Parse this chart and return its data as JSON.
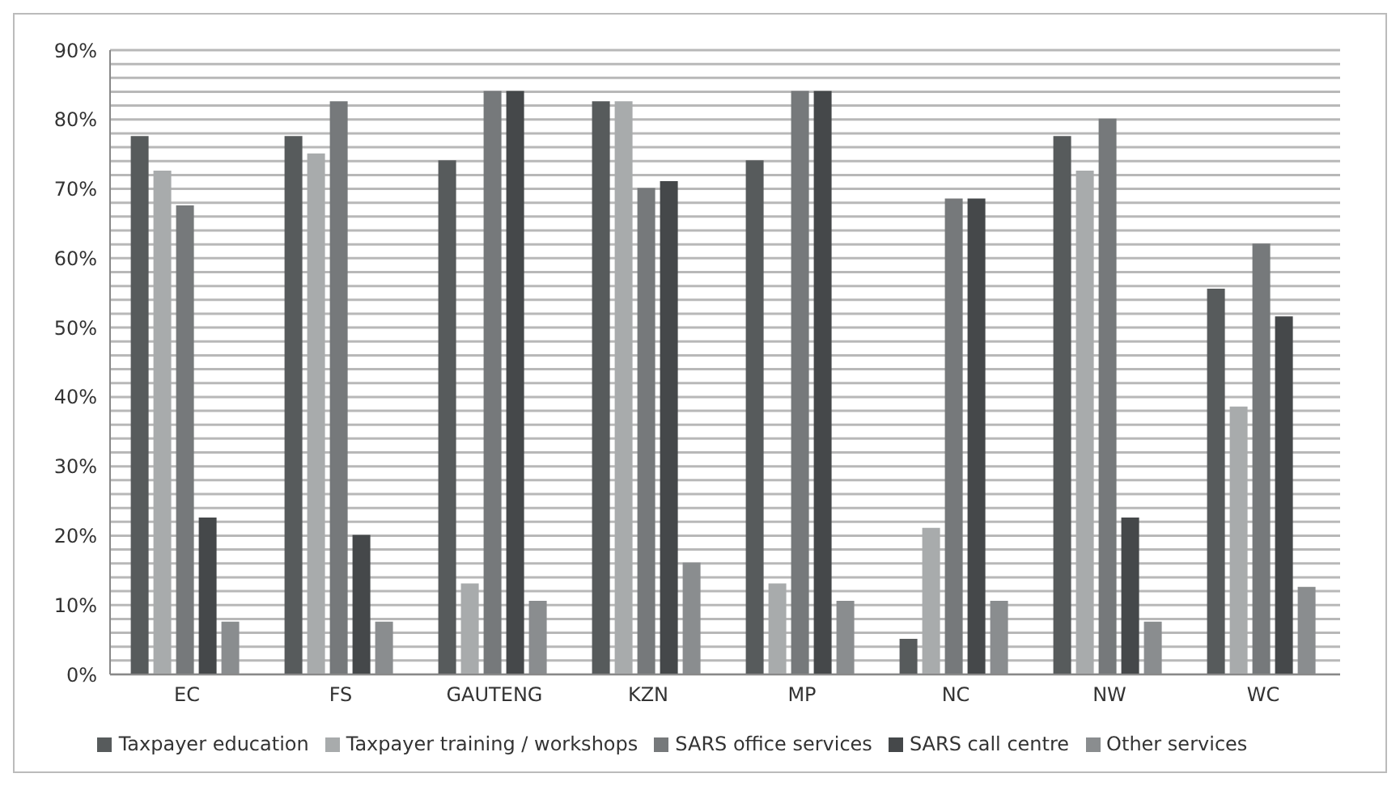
{
  "chart_data": {
    "type": "bar",
    "categories": [
      "EC",
      "FS",
      "GAUTENG",
      "KZN",
      "MP",
      "NC",
      "NW",
      "WC"
    ],
    "series": [
      {
        "name": "Taxpayer education",
        "color": "#575b5c",
        "values": [
          77.5,
          77.5,
          74,
          82.5,
          74,
          5,
          77.5,
          55.5
        ]
      },
      {
        "name": "Taxpayer training / workshops",
        "color": "#a8abac",
        "values": [
          72.5,
          75,
          13,
          82.5,
          13,
          21,
          72.5,
          38.5
        ]
      },
      {
        "name": "SARS office services",
        "color": "#76797b",
        "values": [
          67.5,
          82.5,
          84,
          70,
          84,
          68.5,
          80,
          62
        ]
      },
      {
        "name": "SARS call centre",
        "color": "#45484a",
        "values": [
          22.5,
          20,
          84,
          71,
          84,
          68.5,
          22.5,
          51.5
        ]
      },
      {
        "name": "Other services",
        "color": "#8a8d8f",
        "values": [
          7.5,
          7.5,
          10.5,
          16,
          10.5,
          10.5,
          7.5,
          12.5
        ]
      }
    ],
    "ylim": [
      0,
      90
    ],
    "yticks": [
      {
        "value": 0,
        "label": "0%"
      },
      {
        "value": 2,
        "label": null
      },
      {
        "value": 4,
        "label": null
      },
      {
        "value": 6,
        "label": null
      },
      {
        "value": 8,
        "label": null
      },
      {
        "value": 10,
        "label": "10%"
      },
      {
        "value": 12,
        "label": null
      },
      {
        "value": 14,
        "label": null
      },
      {
        "value": 16,
        "label": null
      },
      {
        "value": 18,
        "label": null
      },
      {
        "value": 20,
        "label": "20%"
      },
      {
        "value": 22,
        "label": null
      },
      {
        "value": 24,
        "label": null
      },
      {
        "value": 26,
        "label": null
      },
      {
        "value": 28,
        "label": null
      },
      {
        "value": 30,
        "label": "30%"
      },
      {
        "value": 32,
        "label": null
      },
      {
        "value": 34,
        "label": null
      },
      {
        "value": 36,
        "label": null
      },
      {
        "value": 38,
        "label": null
      },
      {
        "value": 40,
        "label": "40%"
      },
      {
        "value": 42,
        "label": null
      },
      {
        "value": 44,
        "label": null
      },
      {
        "value": 46,
        "label": null
      },
      {
        "value": 48,
        "label": null
      },
      {
        "value": 50,
        "label": "50%"
      },
      {
        "value": 52,
        "label": null
      },
      {
        "value": 54,
        "label": null
      },
      {
        "value": 56,
        "label": null
      },
      {
        "value": 58,
        "label": null
      },
      {
        "value": 60,
        "label": "60%"
      },
      {
        "value": 62,
        "label": null
      },
      {
        "value": 64,
        "label": null
      },
      {
        "value": 66,
        "label": null
      },
      {
        "value": 68,
        "label": null
      },
      {
        "value": 70,
        "label": "70%"
      },
      {
        "value": 72,
        "label": null
      },
      {
        "value": 74,
        "label": null
      },
      {
        "value": 76,
        "label": null
      },
      {
        "value": 78,
        "label": null
      },
      {
        "value": 80,
        "label": "80%"
      },
      {
        "value": 82,
        "label": null
      },
      {
        "value": 84,
        "label": null
      },
      {
        "value": 86,
        "label": null
      },
      {
        "value": 88,
        "label": null
      },
      {
        "value": 90,
        "label": "90%"
      }
    ],
    "grid": "y",
    "legend": "bottom"
  }
}
